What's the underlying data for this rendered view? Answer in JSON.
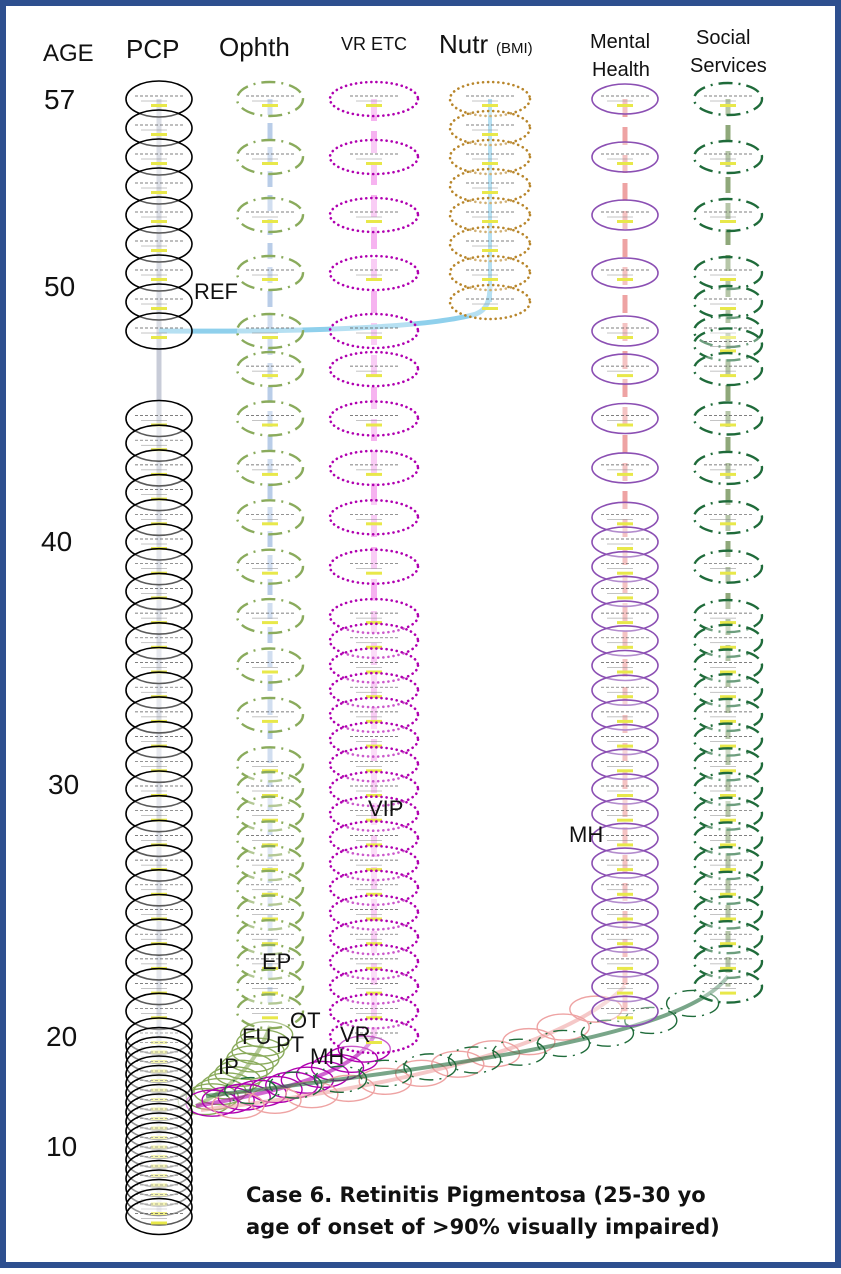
{
  "headers": {
    "age": "AGE",
    "pcp": "PCP",
    "ophth": "Ophth",
    "vr": "VR ETC",
    "nutr": "Nutr",
    "nutr_sub": "(BMI)",
    "mental_line1": "Mental",
    "mental_line2": "Health",
    "social_line1": "Social",
    "social_line2": "Services"
  },
  "age_ticks": [
    "57",
    "50",
    "40",
    "30",
    "20",
    "10"
  ],
  "annotations": {
    "ref": "REF",
    "vip": "VIP",
    "mh_column": "MH",
    "ep": "EP",
    "ot": "OT",
    "fu": "FU",
    "pt": "PT",
    "mh_low": "MH",
    "vr_low": "VR",
    "ip": "IP"
  },
  "caption": {
    "line1": "Case 6.  Retinitis Pigmentosa (25-30 yo",
    "line2": "age of onset of >90% visually impaired)"
  },
  "colors": {
    "frame": "#2e4f8f",
    "pcp": "#000000",
    "ophth": "#8aab5c",
    "vr": "#b000b0",
    "nutr": "#b8862b",
    "mental": "#8b4fb3",
    "social": "#1f6b3a",
    "pcp_track": "#c8ccd8",
    "ophth_track": "#b9cde8",
    "vr_track": "#f6b3f0",
    "nutr_track": "#8fd0ec",
    "mental_track": "#eea3a3",
    "social_track": "#8fa87a",
    "highlight": "#e8e84a"
  },
  "columns": [
    {
      "key": "pcp",
      "style": "solid",
      "ages": [
        57,
        56,
        55,
        54,
        53,
        52,
        51,
        50,
        49,
        45,
        44,
        43,
        42,
        41,
        40,
        39,
        38,
        37,
        36,
        35,
        34,
        33,
        32,
        31,
        30,
        29,
        28,
        27,
        26,
        25,
        24,
        23,
        22,
        21,
        20,
        19,
        18,
        17,
        16,
        15,
        14,
        13,
        12,
        11,
        10,
        9,
        8,
        7,
        6,
        5,
        4,
        3,
        2,
        1
      ]
    },
    {
      "key": "ophth",
      "style": "dashdot",
      "ages": [
        57,
        55,
        53,
        51,
        49,
        47,
        45,
        43,
        41,
        39,
        37,
        35,
        33,
        31,
        30,
        29,
        28,
        27,
        26,
        25,
        24,
        23,
        22,
        21
      ]
    },
    {
      "key": "vr",
      "style": "dotted",
      "ages": [
        57,
        55,
        53,
        51,
        49,
        47,
        45,
        43,
        41,
        39,
        37,
        36,
        35,
        34,
        33,
        32,
        31,
        30,
        29,
        28,
        27,
        26,
        25,
        24,
        23,
        22,
        21,
        20
      ]
    },
    {
      "key": "nutr",
      "style": "dotted",
      "ages": [
        57,
        56,
        55,
        54,
        53,
        52,
        51,
        50
      ]
    },
    {
      "key": "mental",
      "style": "solid",
      "ages": [
        57,
        55,
        53,
        51,
        49,
        47,
        45,
        43,
        41,
        40,
        39,
        38,
        37,
        36,
        35,
        34,
        33,
        32,
        31,
        30,
        29,
        28,
        27,
        26,
        25,
        24,
        23,
        22,
        21
      ]
    },
    {
      "key": "social",
      "style": "dashdot",
      "ages": [
        57,
        55,
        53,
        51,
        50,
        49,
        48,
        47,
        45,
        43,
        41,
        39,
        37,
        36,
        35,
        34,
        33,
        32,
        31,
        30,
        29,
        28,
        27,
        26,
        25,
        24,
        23,
        22
      ]
    }
  ]
}
